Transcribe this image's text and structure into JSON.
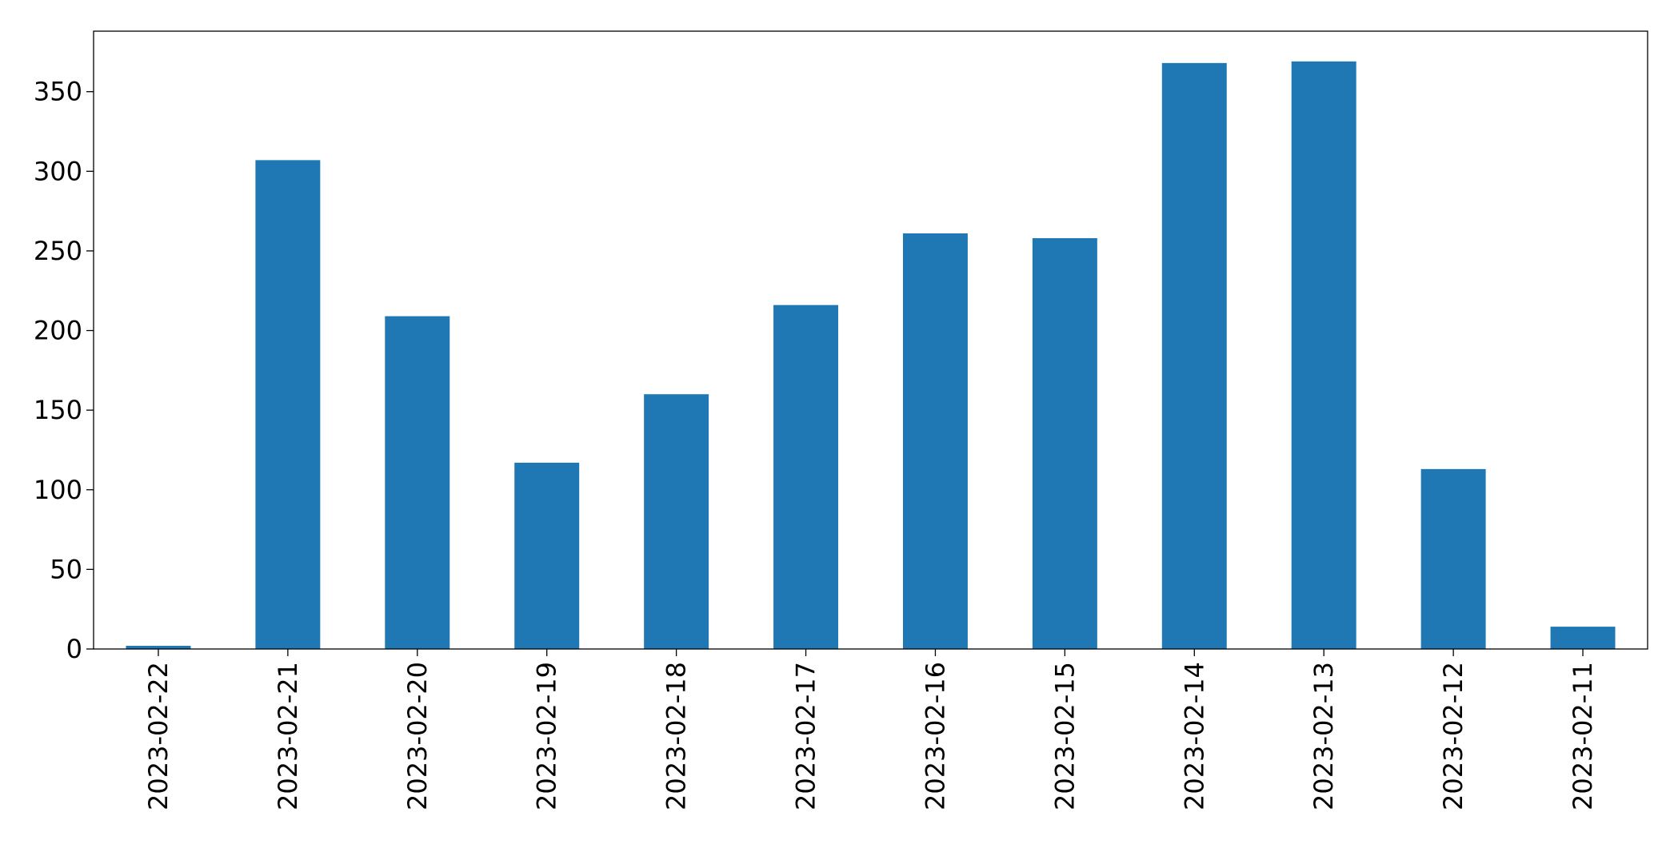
{
  "chart_data": {
    "type": "bar",
    "categories": [
      "2023-02-22",
      "2023-02-21",
      "2023-02-20",
      "2023-02-19",
      "2023-02-18",
      "2023-02-17",
      "2023-02-16",
      "2023-02-15",
      "2023-02-14",
      "2023-02-13",
      "2023-02-12",
      "2023-02-11"
    ],
    "values": [
      2,
      307,
      209,
      117,
      160,
      216,
      261,
      258,
      368,
      369,
      113,
      14
    ],
    "title": "",
    "xlabel": "",
    "ylabel": "",
    "ylim": [
      0,
      388
    ],
    "yticks": [
      0,
      50,
      100,
      150,
      200,
      250,
      300,
      350
    ],
    "grid": false,
    "legend": "none",
    "bar_color": "#1f77b4",
    "x_tick_rotation": "vertical"
  }
}
